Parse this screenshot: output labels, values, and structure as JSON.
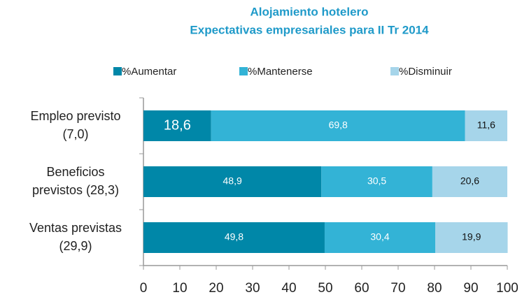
{
  "chart_data": {
    "type": "stacked-barh",
    "title": "Alojamiento hotelero",
    "subtitle": "Expectativas empresariales para II Tr 2014",
    "categories": [
      "Empleo previsto\n(7,0)",
      "Beneficios\nprevistos (28,3)",
      "Ventas previstas\n(29,9)"
    ],
    "series": [
      {
        "name": "%Aumentar",
        "color": "#0087a8",
        "values": [
          18.6,
          48.9,
          49.8
        ],
        "value_labels": [
          "18,6",
          "48,9",
          "49,8"
        ]
      },
      {
        "name": "%Mantenerse",
        "color": "#33b3d6",
        "values": [
          69.8,
          30.5,
          30.4
        ],
        "value_labels": [
          "69,8",
          "30,5",
          "30,4"
        ]
      },
      {
        "name": "%Disminuir",
        "color": "#a6d5ea",
        "values": [
          11.6,
          20.6,
          19.9
        ],
        "value_labels": [
          "11,6",
          "20,6",
          "19,9"
        ]
      }
    ],
    "xlim": [
      0,
      100
    ],
    "xticks": [
      0,
      10,
      20,
      30,
      40,
      50,
      60,
      70,
      80,
      90,
      100
    ],
    "legend": "top"
  }
}
